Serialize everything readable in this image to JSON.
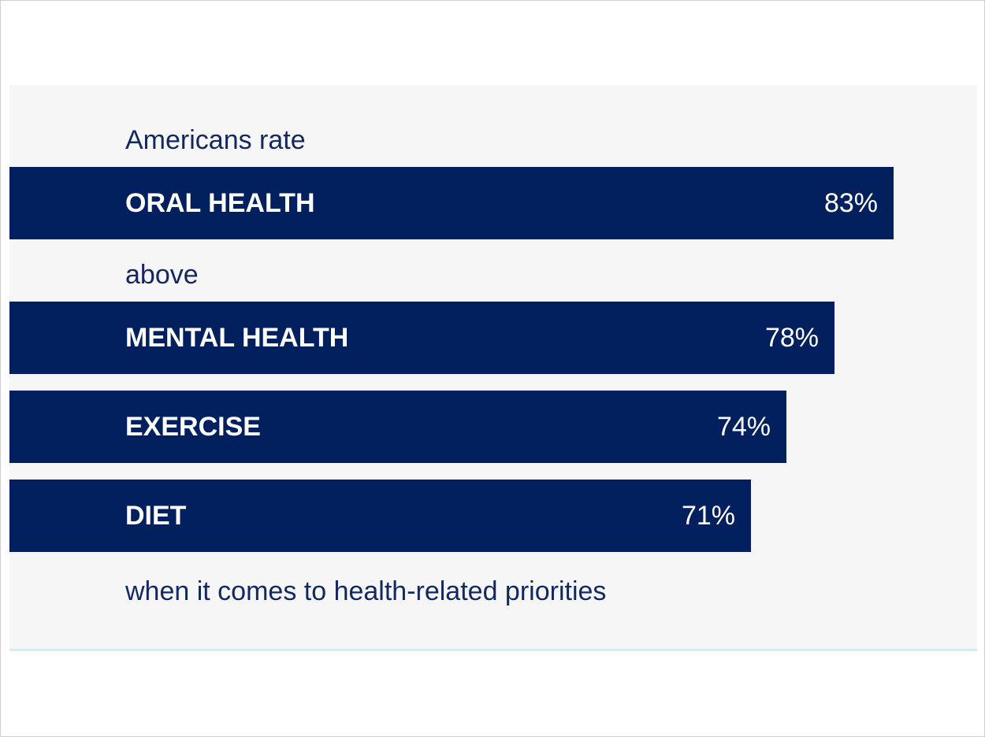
{
  "intro_text": "Americans rate",
  "connector_text": "above",
  "closing_text": "when it comes to health-related priorities",
  "colors": {
    "bar": "#03205e",
    "text": "#12285e",
    "panel": "#f6f6f6",
    "rule": "#d7ecef"
  },
  "chart_data": {
    "type": "bar",
    "orientation": "horizontal",
    "categories": [
      "ORAL HEALTH",
      "MENTAL HEALTH",
      "EXERCISE",
      "DIET"
    ],
    "values": [
      83,
      78,
      74,
      71
    ],
    "value_labels": [
      "83%",
      "78%",
      "74%",
      "71%"
    ],
    "unit": "%",
    "grid": false,
    "legend": "none"
  }
}
